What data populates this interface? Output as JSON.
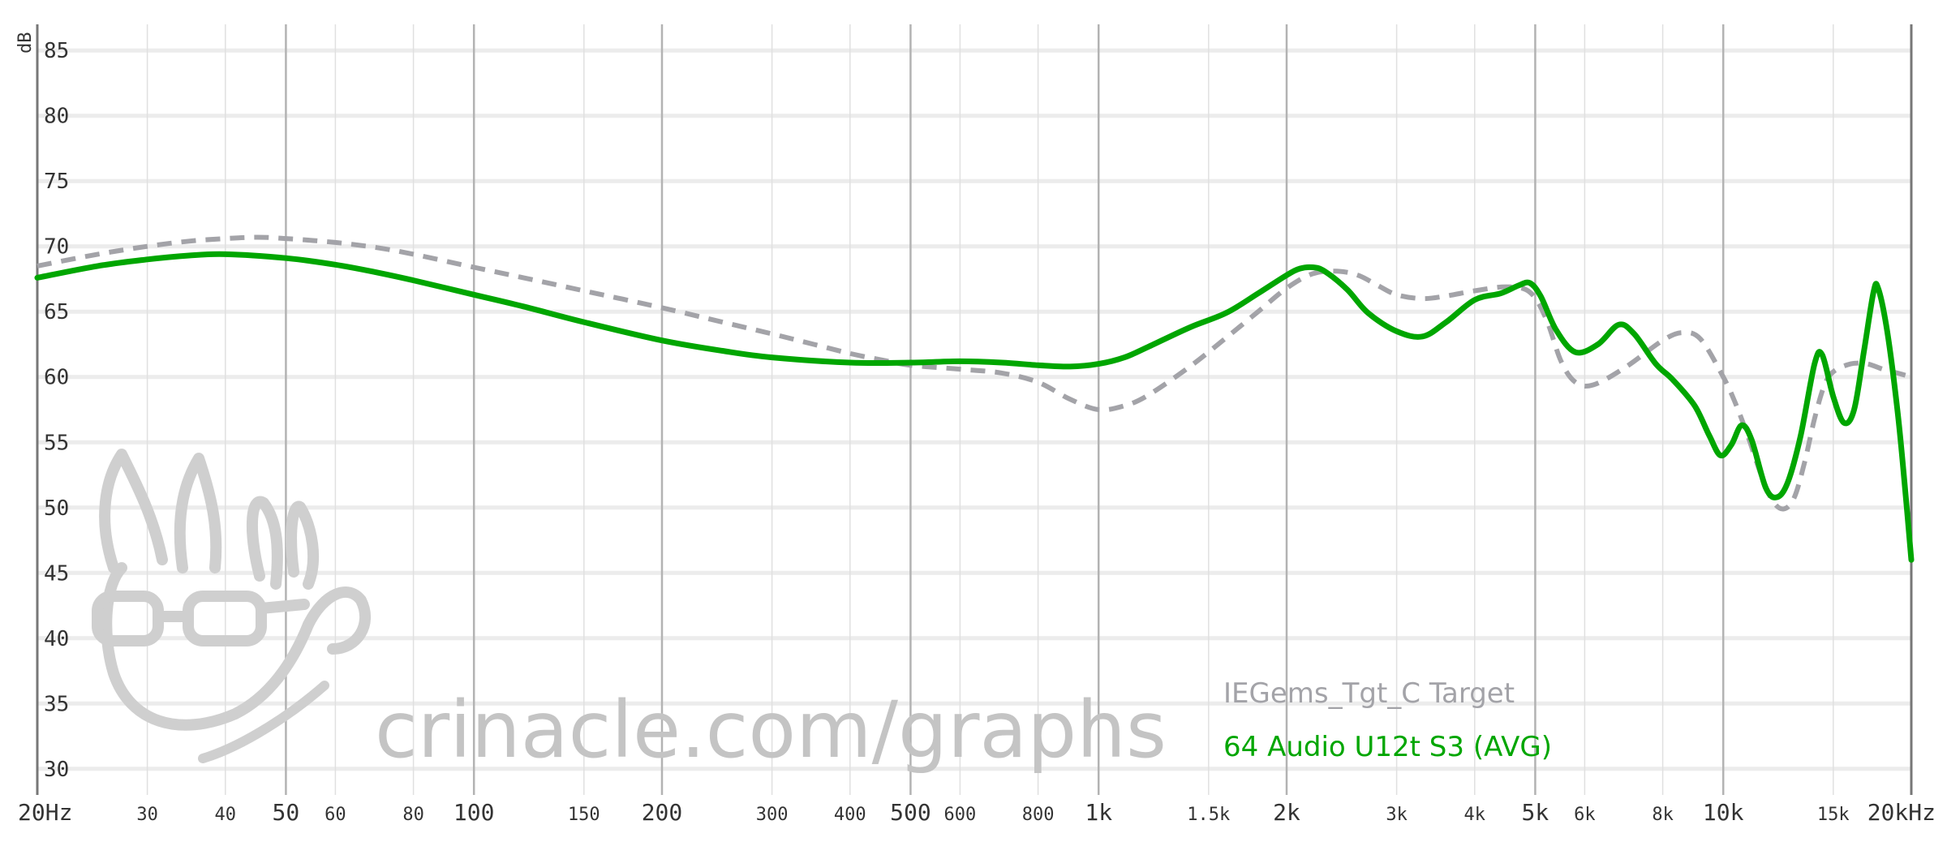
{
  "chart_data": {
    "type": "line",
    "ylabel": "dB",
    "ylim": [
      28,
      87
    ],
    "xlim": [
      20,
      20000
    ],
    "x_scale": "log",
    "grid": true,
    "legend_position": "bottom-right",
    "y_ticks": [
      85,
      80,
      75,
      70,
      65,
      60,
      55,
      50,
      45,
      40,
      35,
      30
    ],
    "x_ticks": [
      {
        "value": 20,
        "label": "20Hz",
        "major": true
      },
      {
        "value": 30,
        "label": "30",
        "major": false
      },
      {
        "value": 40,
        "label": "40",
        "major": false
      },
      {
        "value": 50,
        "label": "50",
        "major": true
      },
      {
        "value": 60,
        "label": "60",
        "major": false
      },
      {
        "value": 80,
        "label": "80",
        "major": false
      },
      {
        "value": 100,
        "label": "100",
        "major": true
      },
      {
        "value": 150,
        "label": "150",
        "major": false
      },
      {
        "value": 200,
        "label": "200",
        "major": true
      },
      {
        "value": 300,
        "label": "300",
        "major": false
      },
      {
        "value": 400,
        "label": "400",
        "major": false
      },
      {
        "value": 500,
        "label": "500",
        "major": true
      },
      {
        "value": 600,
        "label": "600",
        "major": false
      },
      {
        "value": 800,
        "label": "800",
        "major": false
      },
      {
        "value": 1000,
        "label": "1k",
        "major": true
      },
      {
        "value": 1500,
        "label": "1.5k",
        "major": false
      },
      {
        "value": 2000,
        "label": "2k",
        "major": true
      },
      {
        "value": 3000,
        "label": "3k",
        "major": false
      },
      {
        "value": 4000,
        "label": "4k",
        "major": false
      },
      {
        "value": 5000,
        "label": "5k",
        "major": true
      },
      {
        "value": 6000,
        "label": "6k",
        "major": false
      },
      {
        "value": 8000,
        "label": "8k",
        "major": false
      },
      {
        "value": 10000,
        "label": "10k",
        "major": true
      },
      {
        "value": 15000,
        "label": "15k",
        "major": false
      },
      {
        "value": 20000,
        "label": "20kHz",
        "major": true
      }
    ],
    "series": [
      {
        "name": "IEGems_Tgt_C Target",
        "color": "#a3a3a8",
        "style": "dashed",
        "points": [
          [
            20,
            68.5
          ],
          [
            25,
            69.4
          ],
          [
            30,
            70.0
          ],
          [
            35,
            70.4
          ],
          [
            40,
            70.6
          ],
          [
            45,
            70.7
          ],
          [
            50,
            70.6
          ],
          [
            60,
            70.3
          ],
          [
            70,
            69.9
          ],
          [
            80,
            69.4
          ],
          [
            100,
            68.4
          ],
          [
            120,
            67.6
          ],
          [
            150,
            66.6
          ],
          [
            200,
            65.3
          ],
          [
            250,
            64.2
          ],
          [
            300,
            63.3
          ],
          [
            350,
            62.5
          ],
          [
            400,
            61.8
          ],
          [
            450,
            61.3
          ],
          [
            500,
            60.9
          ],
          [
            600,
            60.6
          ],
          [
            700,
            60.3
          ],
          [
            800,
            59.6
          ],
          [
            900,
            58.3
          ],
          [
            1000,
            57.5
          ],
          [
            1100,
            57.8
          ],
          [
            1200,
            58.6
          ],
          [
            1400,
            60.8
          ],
          [
            1600,
            63.0
          ],
          [
            1800,
            65.0
          ],
          [
            2000,
            66.8
          ],
          [
            2200,
            67.9
          ],
          [
            2400,
            68.1
          ],
          [
            2600,
            67.8
          ],
          [
            2800,
            67.0
          ],
          [
            3000,
            66.3
          ],
          [
            3300,
            66.0
          ],
          [
            3600,
            66.2
          ],
          [
            4000,
            66.6
          ],
          [
            4500,
            66.9
          ],
          [
            4900,
            66.5
          ],
          [
            5200,
            64.5
          ],
          [
            5500,
            61.2
          ],
          [
            5800,
            59.6
          ],
          [
            6200,
            59.4
          ],
          [
            7000,
            60.8
          ],
          [
            8000,
            62.8
          ],
          [
            8600,
            63.4
          ],
          [
            9200,
            62.9
          ],
          [
            10000,
            60.0
          ],
          [
            10500,
            57.8
          ],
          [
            11000,
            55.2
          ],
          [
            11500,
            52.5
          ],
          [
            12000,
            50.5
          ],
          [
            12500,
            49.9
          ],
          [
            13000,
            50.8
          ],
          [
            13500,
            53.5
          ],
          [
            14000,
            56.8
          ],
          [
            14500,
            59.3
          ],
          [
            15000,
            60.4
          ],
          [
            16000,
            61.0
          ],
          [
            17000,
            61.0
          ],
          [
            18000,
            60.6
          ],
          [
            19000,
            60.3
          ],
          [
            20000,
            60.0
          ]
        ]
      },
      {
        "name": "64 Audio U12t S3 (AVG)",
        "color": "#00a600",
        "style": "solid",
        "points": [
          [
            20,
            67.6
          ],
          [
            25,
            68.5
          ],
          [
            30,
            69.0
          ],
          [
            35,
            69.3
          ],
          [
            40,
            69.4
          ],
          [
            50,
            69.1
          ],
          [
            60,
            68.6
          ],
          [
            70,
            68.0
          ],
          [
            80,
            67.4
          ],
          [
            100,
            66.3
          ],
          [
            120,
            65.4
          ],
          [
            150,
            64.2
          ],
          [
            200,
            62.8
          ],
          [
            250,
            62.0
          ],
          [
            300,
            61.5
          ],
          [
            400,
            61.1
          ],
          [
            500,
            61.1
          ],
          [
            600,
            61.2
          ],
          [
            700,
            61.1
          ],
          [
            800,
            60.9
          ],
          [
            900,
            60.8
          ],
          [
            1000,
            61.0
          ],
          [
            1100,
            61.5
          ],
          [
            1200,
            62.3
          ],
          [
            1400,
            63.8
          ],
          [
            1600,
            64.9
          ],
          [
            1800,
            66.4
          ],
          [
            2000,
            67.8
          ],
          [
            2100,
            68.3
          ],
          [
            2200,
            68.4
          ],
          [
            2300,
            68.1
          ],
          [
            2500,
            66.7
          ],
          [
            2700,
            64.9
          ],
          [
            3000,
            63.5
          ],
          [
            3300,
            63.1
          ],
          [
            3600,
            64.2
          ],
          [
            4000,
            65.9
          ],
          [
            4400,
            66.4
          ],
          [
            4700,
            67.0
          ],
          [
            4900,
            67.2
          ],
          [
            5100,
            66.2
          ],
          [
            5400,
            63.6
          ],
          [
            5800,
            61.9
          ],
          [
            6300,
            62.5
          ],
          [
            6800,
            64.0
          ],
          [
            7200,
            63.3
          ],
          [
            7800,
            61.0
          ],
          [
            8300,
            59.8
          ],
          [
            9000,
            57.8
          ],
          [
            9500,
            55.5
          ],
          [
            9900,
            54.0
          ],
          [
            10300,
            54.8
          ],
          [
            10700,
            56.3
          ],
          [
            11100,
            55.2
          ],
          [
            11700,
            51.5
          ],
          [
            12200,
            50.8
          ],
          [
            12700,
            52.0
          ],
          [
            13300,
            55.5
          ],
          [
            14000,
            61.0
          ],
          [
            14400,
            61.7
          ],
          [
            15000,
            58.5
          ],
          [
            15600,
            56.5
          ],
          [
            16200,
            57.5
          ],
          [
            16800,
            62.0
          ],
          [
            17400,
            66.5
          ],
          [
            17700,
            66.8
          ],
          [
            18300,
            63.5
          ],
          [
            19000,
            57.5
          ],
          [
            19500,
            52.0
          ],
          [
            20000,
            46.0
          ]
        ]
      }
    ]
  },
  "watermark": {
    "text": "crinacle.com/graphs"
  }
}
